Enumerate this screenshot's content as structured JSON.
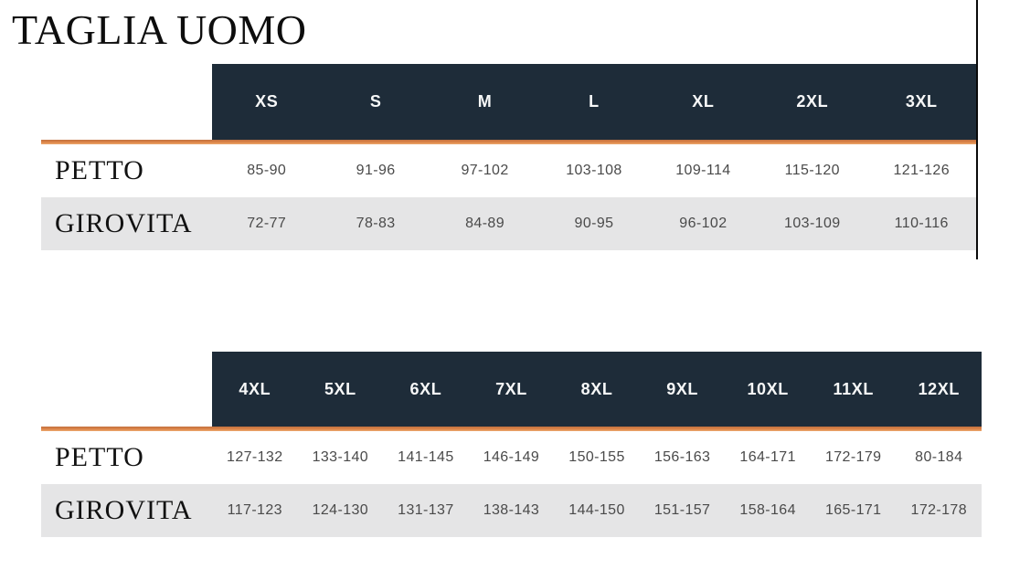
{
  "page": {
    "title": "TAGLIA UOMO"
  },
  "colors": {
    "header_bg": "#1e2c39",
    "accent_line": "#dd8549",
    "alt_row_bg": "#e5e5e6",
    "header_text": "#f7f8f8",
    "cell_text": "#4a4a4a",
    "label_text": "#121212",
    "edge_divider": "#0a0a0a"
  },
  "tables": [
    {
      "name": "sizes XS-3XL",
      "header": [
        "XS",
        "S",
        "M",
        "L",
        "XL",
        "2XL",
        "3XL"
      ],
      "rows": [
        {
          "label": "PETTO",
          "values": [
            "85-90",
            "91-96",
            "97-102",
            "103-108",
            "109-114",
            "115-120",
            "121-126"
          ]
        },
        {
          "label": "GIROVITA",
          "values": [
            "72-77",
            "78-83",
            "84-89",
            "90-95",
            "96-102",
            "103-109",
            "110-116"
          ]
        }
      ]
    },
    {
      "name": "sizes 4XL-12XL",
      "header": [
        "4XL",
        "5XL",
        "6XL",
        "7XL",
        "8XL",
        "9XL",
        "10XL",
        "11XL",
        "12XL"
      ],
      "rows": [
        {
          "label": "PETTO",
          "values": [
            "127-132",
            "133-140",
            "141-145",
            "146-149",
            "150-155",
            "156-163",
            "164-171",
            "172-179",
            "80-184"
          ]
        },
        {
          "label": "GIROVITA",
          "values": [
            "117-123",
            "124-130",
            "131-137",
            "138-143",
            "144-150",
            "151-157",
            "158-164",
            "165-171",
            "172-178"
          ]
        }
      ]
    }
  ]
}
